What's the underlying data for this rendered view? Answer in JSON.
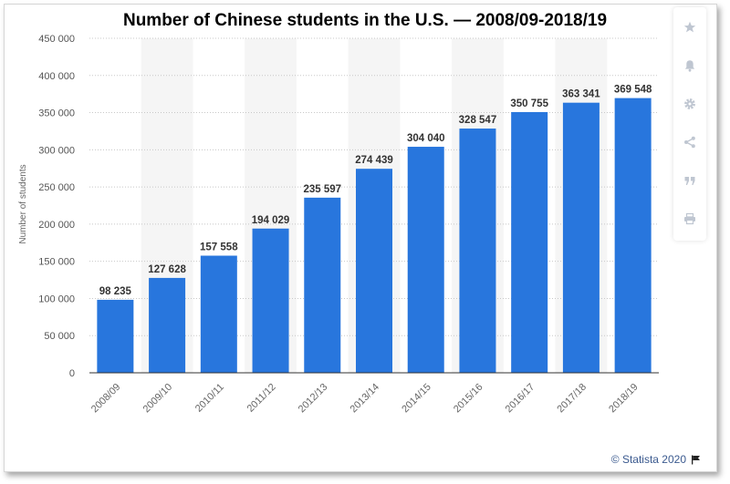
{
  "chart_data": {
    "type": "bar",
    "title": "Number of Chinese students in the U.S. — 2008/09-2018/19",
    "xlabel": "",
    "ylabel": "Number of students",
    "categories": [
      "2008/09",
      "2009/10",
      "2010/11",
      "2011/12",
      "2012/13",
      "2013/14",
      "2014/15",
      "2015/16",
      "2016/17",
      "2017/18",
      "2018/19"
    ],
    "values": [
      98235,
      127628,
      157558,
      194029,
      235597,
      274439,
      304040,
      328547,
      350755,
      363341,
      369548
    ],
    "value_labels": [
      "98 235",
      "127 628",
      "157 558",
      "194 029",
      "235 597",
      "274 439",
      "304 040",
      "328 547",
      "350 755",
      "363 341",
      "369 548"
    ],
    "ylim": [
      0,
      450000
    ],
    "yticks": [
      0,
      50000,
      100000,
      150000,
      200000,
      250000,
      300000,
      350000,
      400000,
      450000
    ],
    "ytick_labels": [
      "0",
      "50 000",
      "100 000",
      "150 000",
      "200 000",
      "250 000",
      "300 000",
      "350 000",
      "400 000",
      "450 000"
    ],
    "bar_color": "#2876dd",
    "band_color": "#f5f5f5",
    "grid": true,
    "legend": "none"
  },
  "toolbar": {
    "items": [
      {
        "icon": "star-icon"
      },
      {
        "icon": "bell-icon"
      },
      {
        "icon": "gear-icon"
      },
      {
        "icon": "share-icon"
      },
      {
        "icon": "quote-icon"
      },
      {
        "icon": "print-icon"
      }
    ],
    "icon_color": "#bfc6d1"
  },
  "footer": {
    "copyright": "© Statista 2020",
    "flag_icon": "flag-icon"
  }
}
